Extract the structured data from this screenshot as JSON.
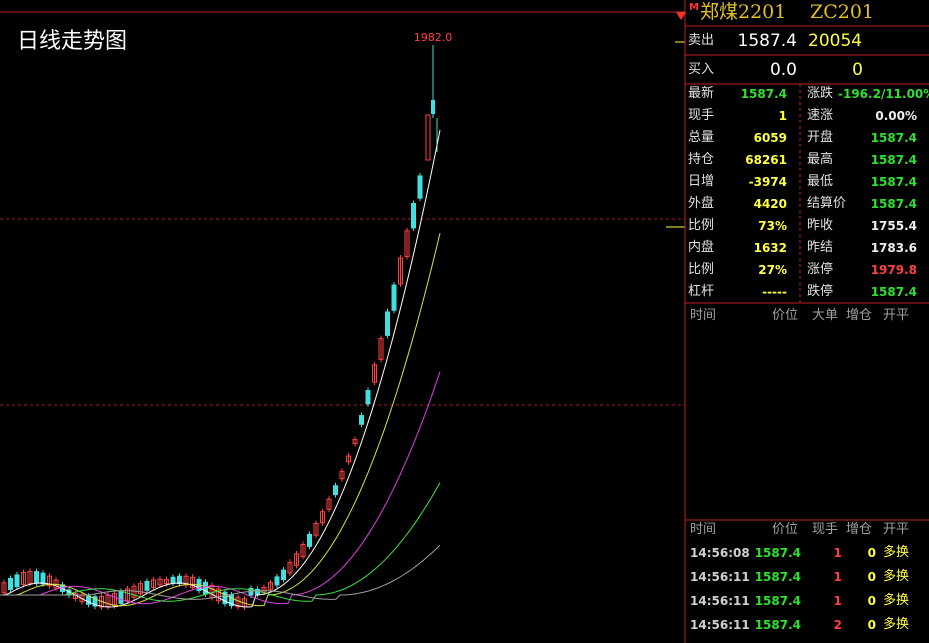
{
  "chart": {
    "title": "日线走势图",
    "high_label": "1982.0"
  },
  "header": {
    "flag": "M",
    "name": "郑煤2201",
    "code": "ZC201"
  },
  "quotes": [
    {
      "label": "卖出",
      "price": "1587.4",
      "volume": "20054"
    },
    {
      "label": "买入",
      "price": "0.0",
      "volume": "0"
    }
  ],
  "stats_left": [
    [
      "最新",
      "1587.4"
    ],
    [
      "现手",
      "1"
    ],
    [
      "总量",
      "6059"
    ],
    [
      "持仓",
      "68261"
    ],
    [
      "日增",
      "-3974"
    ],
    [
      "外盘",
      "4420"
    ],
    [
      "比例",
      "73%"
    ],
    [
      "内盘",
      "1632"
    ],
    [
      "比例",
      "27%"
    ],
    [
      "杠杆",
      "-----"
    ]
  ],
  "stats_right": [
    [
      "涨跌",
      "-196.2/11.00%"
    ],
    [
      "速涨",
      "0.00%"
    ],
    [
      "开盘",
      "1587.4"
    ],
    [
      "最高",
      "1587.4"
    ],
    [
      "最低",
      "1587.4"
    ],
    [
      "结算价",
      "1587.4"
    ],
    [
      "昨收",
      "1755.4"
    ],
    [
      "昨结",
      "1783.6"
    ],
    [
      "涨停",
      "1979.8"
    ],
    [
      "跌停",
      "1587.4"
    ]
  ],
  "big_orders": {
    "headers": [
      "时间",
      "价位",
      "大单",
      "增仓",
      "开平"
    ]
  },
  "ticks": {
    "headers": [
      "时间",
      "价位",
      "现手",
      "增仓",
      "开平"
    ],
    "rows": [
      [
        "14:56:08",
        "1587.4",
        "1",
        "0",
        "多换"
      ],
      [
        "14:56:11",
        "1587.4",
        "1",
        "0",
        "多换"
      ],
      [
        "14:56:11",
        "1587.4",
        "1",
        "0",
        "多换"
      ],
      [
        "14:56:11",
        "1587.4",
        "2",
        "0",
        "多换"
      ]
    ]
  }
}
